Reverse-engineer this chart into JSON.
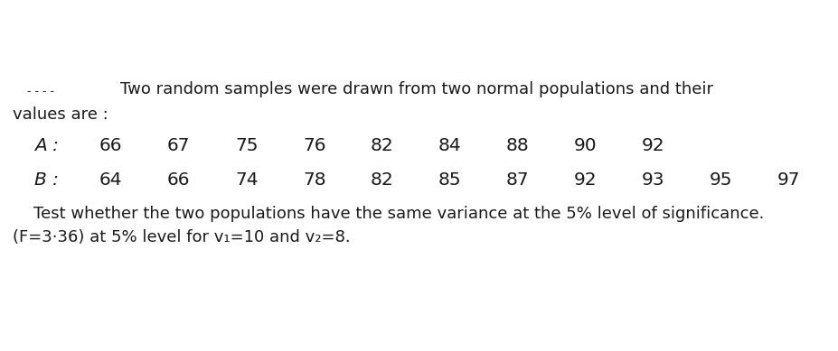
{
  "bg_color": "#ffffff",
  "line1_right": "Two random samples were drawn from two normal populations and their",
  "line2": "values are :",
  "label_A": "A :",
  "values_A": [
    "66",
    "67",
    "75",
    "76",
    "82",
    "84",
    "88",
    "90",
    "92"
  ],
  "label_B": "B :",
  "values_B": [
    "64",
    "66",
    "74",
    "78",
    "82",
    "85",
    "87",
    "92",
    "93",
    "95",
    "97"
  ],
  "bottom_line1_indent": "    Test whether the two populations have the same variance at the 5% level of significance.",
  "bottom_line2": "(F=3·36) at 5% level for v₁=10 and v₂=8.",
  "font_size_main": 13.0,
  "font_size_data": 14.5,
  "font_size_bottom": 13.0,
  "text_color": "#1a1a1a",
  "dashes": "- - - -"
}
